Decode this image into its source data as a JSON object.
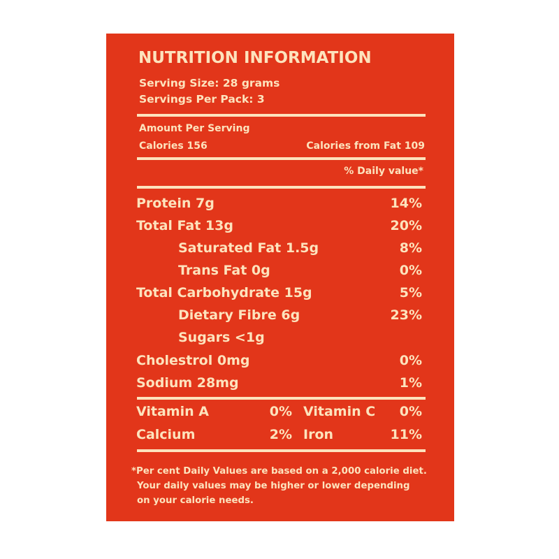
{
  "title": "NUTRITION INFORMATION",
  "serving_size": "Serving Size: 28 grams",
  "servings_per_pack": "Servings Per Pack: 3",
  "amount_per_serving": "Amount Per Serving",
  "calories": "Calories 156",
  "calories_from_fat": "Calories from Fat 109",
  "daily_value_header": "% Daily value*",
  "nutrients": [
    {
      "label": "Protein 7g",
      "dv": "14%"
    },
    {
      "label": "Total Fat 13g",
      "dv": "20%"
    },
    {
      "label": "Saturated Fat 1.5g",
      "dv": "8%"
    },
    {
      "label": "Trans Fat 0g",
      "dv": "0%"
    },
    {
      "label": "Total Carbohydrate 15g",
      "dv": "5%"
    },
    {
      "label": "Dietary Fibre 6g",
      "dv": "23%"
    },
    {
      "label": "Sugars <1g",
      "dv": ""
    },
    {
      "label": "Cholestrol 0mg",
      "dv": "0%"
    },
    {
      "label": "Sodium 28mg",
      "dv": "1%"
    }
  ],
  "vitamins": [
    {
      "label": "Vitamin A",
      "dv": "0%"
    },
    {
      "label": "Vitamin C",
      "dv": "0%"
    },
    {
      "label": "Calcium",
      "dv": "2%"
    },
    {
      "label": "Iron",
      "dv": "11%"
    }
  ],
  "footnote": [
    "*Per cent Daily Values are based on a 2,000 calorie diet.",
    "Your daily values may be higher or lower depending",
    "on your calorie needs."
  ],
  "colors": {
    "background": "#e2361a",
    "text": "#fde3bd"
  }
}
